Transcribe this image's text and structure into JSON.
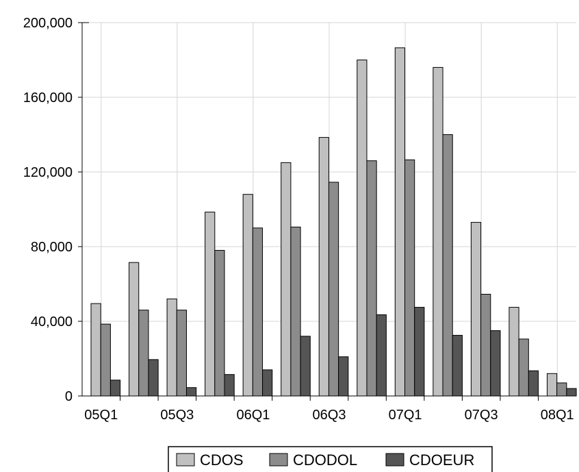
{
  "chart_data": {
    "type": "bar",
    "title": "",
    "xlabel": "",
    "ylabel": "",
    "categories": [
      "05Q1",
      "05Q2",
      "05Q3",
      "05Q4",
      "06Q1",
      "06Q2",
      "06Q3",
      "06Q4",
      "07Q1",
      "07Q2",
      "07Q3",
      "07Q4",
      "08Q1"
    ],
    "x_tick_labels": [
      "05Q1",
      "05Q3",
      "06Q1",
      "06Q3",
      "07Q1",
      "07Q3",
      "08Q1"
    ],
    "ylim": [
      0,
      200000
    ],
    "y_ticks": [
      0,
      40000,
      80000,
      120000,
      160000,
      200000
    ],
    "y_tick_labels": [
      "0",
      "40,000",
      "80,000",
      "120,000",
      "160,000",
      "200,000"
    ],
    "grid": true,
    "legend_position": "bottom-center",
    "series": [
      {
        "name": "CDOS",
        "color": "#c0c0c0",
        "values": [
          49500,
          71500,
          52000,
          98500,
          108000,
          125000,
          138500,
          180000,
          186500,
          176000,
          93000,
          47500,
          12000
        ]
      },
      {
        "name": "CDODOL",
        "color": "#8c8c8c",
        "values": [
          38500,
          46000,
          46000,
          78000,
          90000,
          90500,
          114500,
          126000,
          126500,
          140000,
          54500,
          30500,
          7000
        ]
      },
      {
        "name": "CDOEUR",
        "color": "#555555",
        "values": [
          8500,
          19500,
          4500,
          11500,
          14000,
          32000,
          21000,
          43500,
          47500,
          32500,
          35000,
          13500,
          4000
        ]
      }
    ]
  }
}
